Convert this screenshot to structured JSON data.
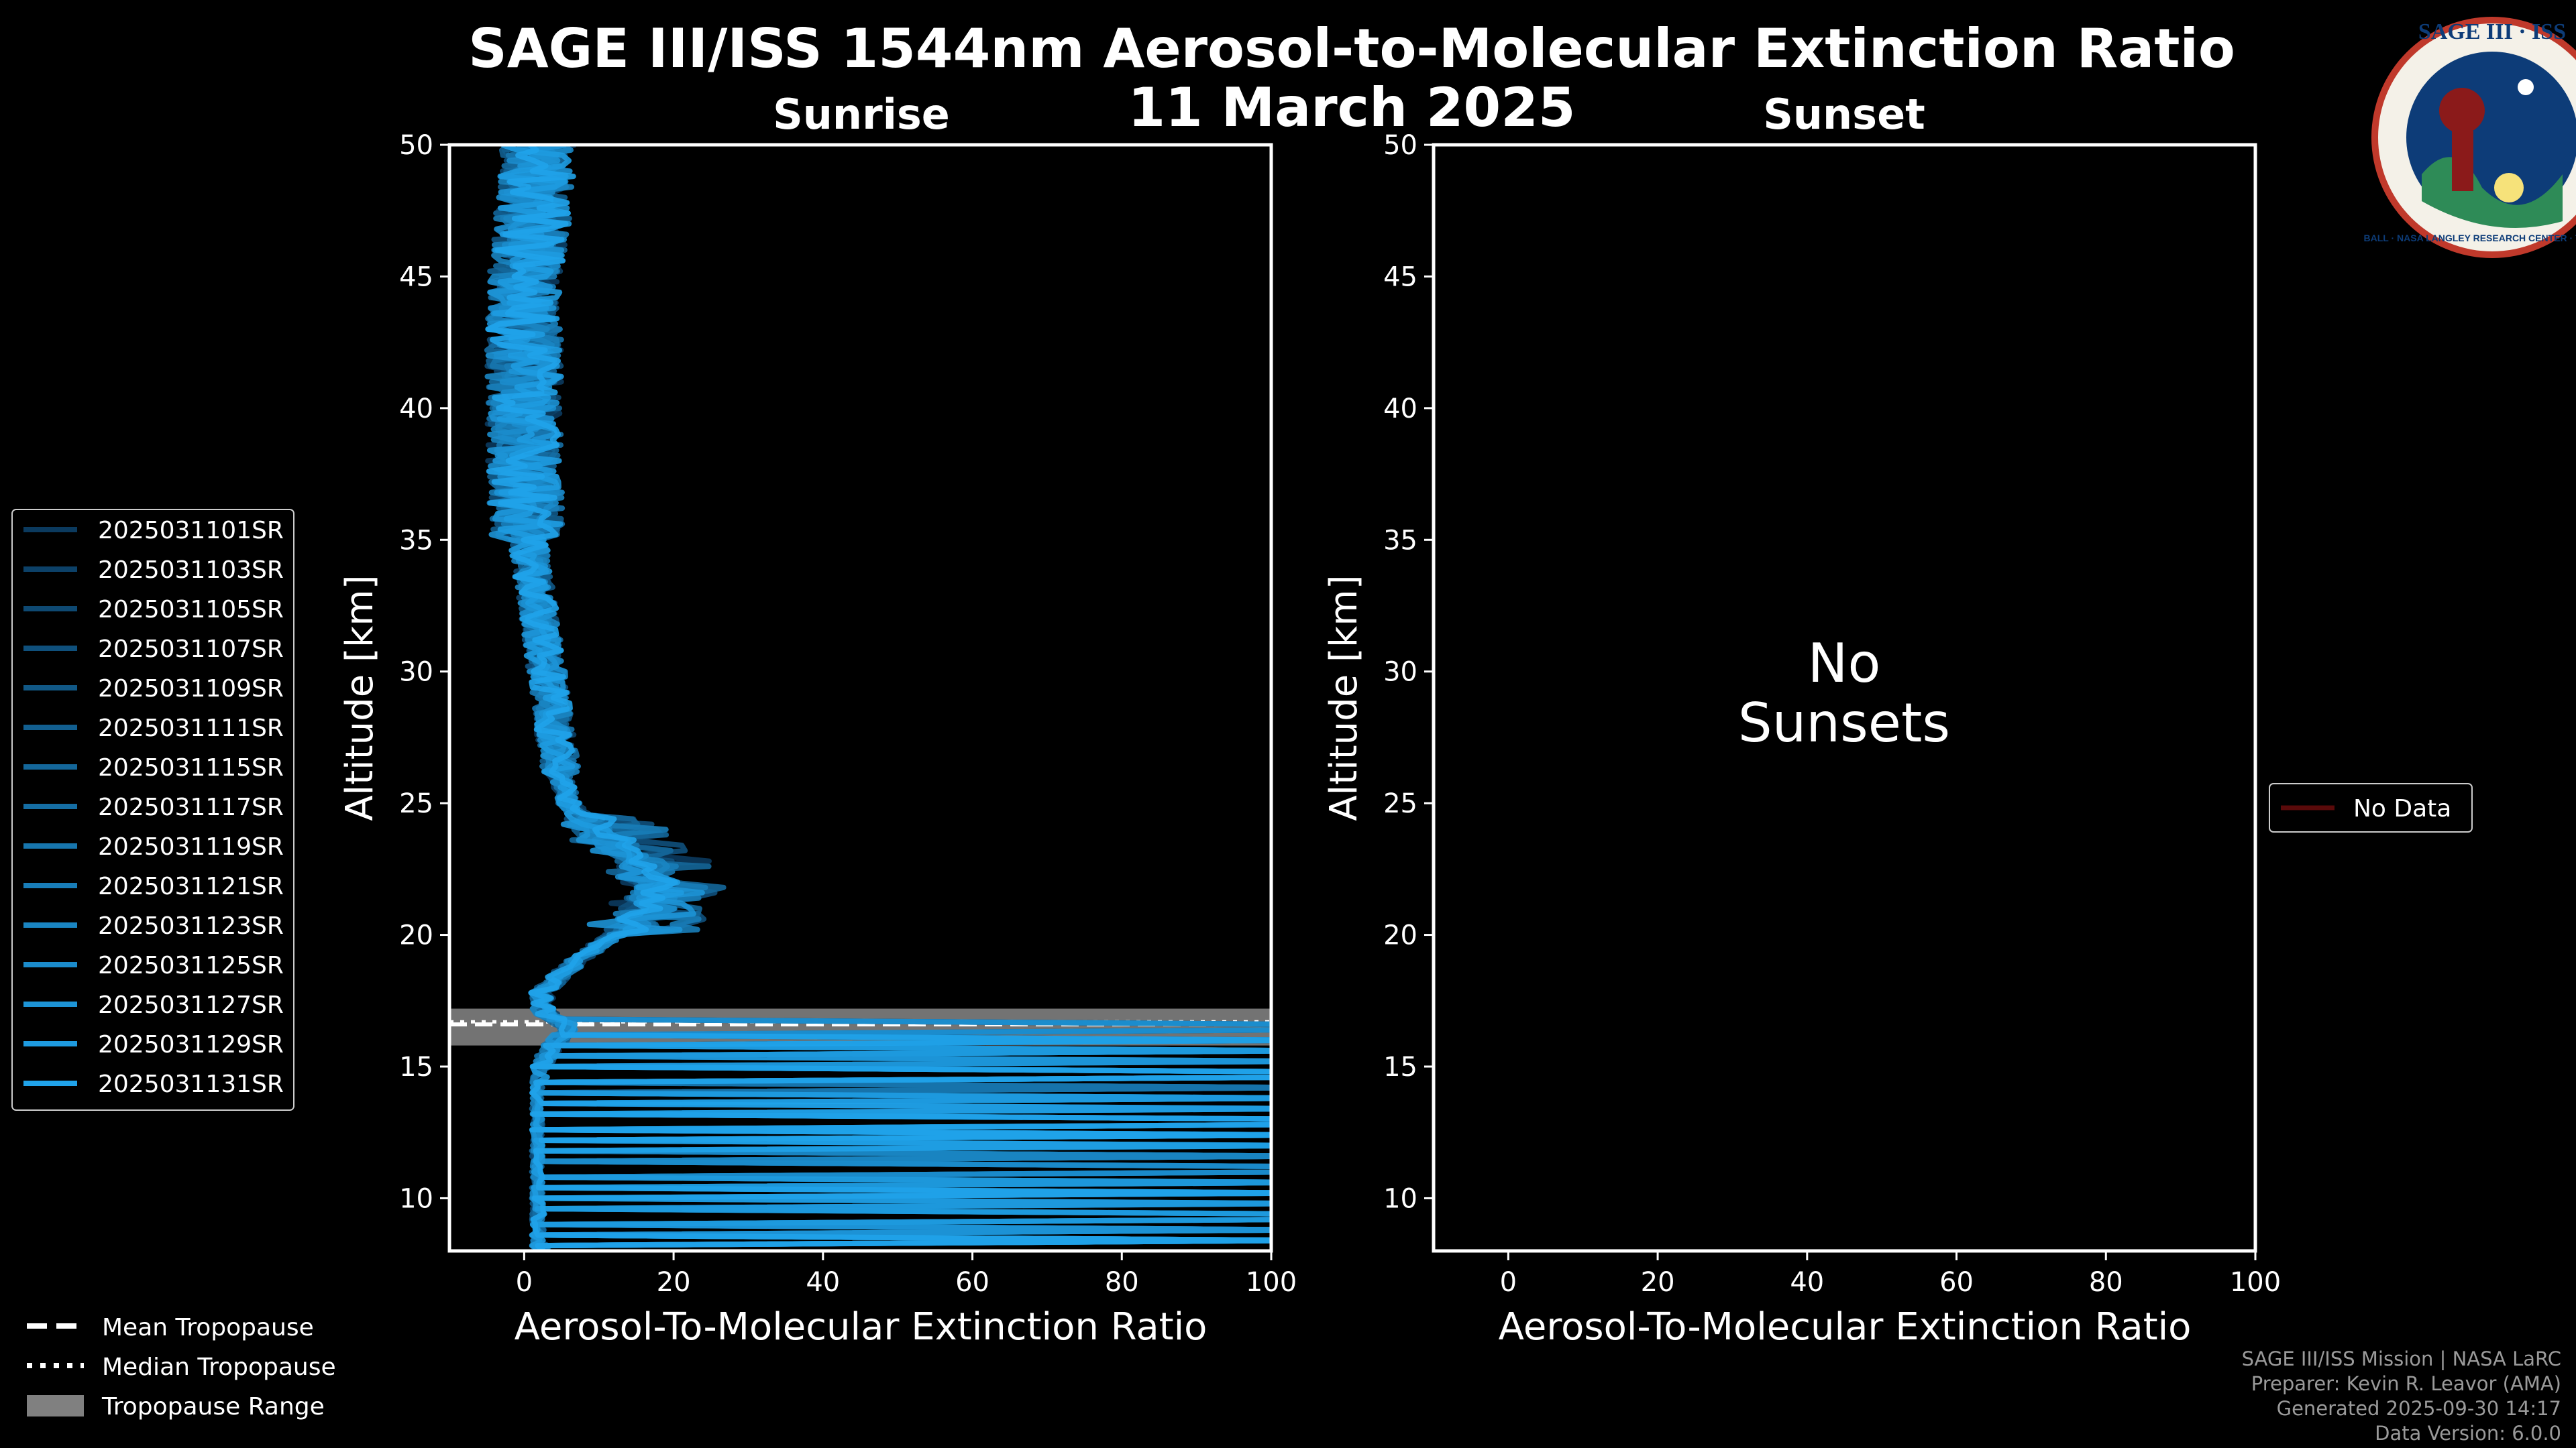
{
  "title": "SAGE III/ISS 1544nm Aerosol-to-Molecular Extinction Ratio",
  "date": "11 March 2025",
  "logo": {
    "text": "SAGE III · ISS",
    "ring_text": "BALL · NASA LANGLEY RESEARCH CENTER · TAS / ESA"
  },
  "colors": {
    "background": "#000000",
    "profile": "#1a8fd6",
    "tropopause_range": "#808080",
    "no_data": "#5a0a0a"
  },
  "chart_data": [
    {
      "type": "line",
      "title": "Sunrise",
      "xlabel": "Aerosol-To-Molecular Extinction Ratio",
      "ylabel": "Altitude [km]",
      "xlim": [
        -10,
        100
      ],
      "ylim": [
        8,
        50
      ],
      "xticks": [
        0,
        20,
        40,
        60,
        80,
        100
      ],
      "yticks": [
        10,
        15,
        20,
        25,
        30,
        35,
        40,
        45,
        50
      ],
      "tropopause": {
        "mean": 16.6,
        "median": 16.7,
        "range": [
          15.8,
          17.2
        ]
      },
      "series_names": [
        "2025031101SR",
        "2025031103SR",
        "2025031105SR",
        "2025031107SR",
        "2025031109SR",
        "2025031111SR",
        "2025031115SR",
        "2025031117SR",
        "2025031119SR",
        "2025031121SR",
        "2025031123SR",
        "2025031125SR",
        "2025031127SR",
        "2025031129SR",
        "2025031131SR"
      ],
      "series_colors": [
        "#0b3a5e",
        "#0c4168",
        "#0e4972",
        "#0f507c",
        "#115886",
        "#125f90",
        "#14679a",
        "#156ea4",
        "#1776ae",
        "#187db8",
        "#1a85c2",
        "#1b8ccc",
        "#1d94d6",
        "#1e9be0",
        "#20a3ea"
      ],
      "profile_anchors": {
        "alt": [
          8,
          10,
          12,
          14,
          15,
          15.8,
          16.5,
          17,
          17.5,
          18,
          19,
          20,
          21,
          22,
          23,
          24,
          25,
          26,
          28,
          30,
          32,
          35,
          38,
          41,
          44,
          47,
          50
        ],
        "ratio": [
          1,
          0,
          0,
          0,
          1,
          3,
          5,
          2,
          1,
          3,
          7,
          12,
          16,
          16,
          13,
          9,
          6,
          5,
          4,
          3,
          2,
          0.5,
          0,
          0,
          0,
          1,
          2
        ]
      },
      "legend_position": "center-left, outside"
    },
    {
      "type": "line",
      "title": "Sunset",
      "xlabel": "Aerosol-To-Molecular Extinction Ratio",
      "ylabel": "Altitude [km]",
      "xlim": [
        -10,
        100
      ],
      "ylim": [
        8,
        50
      ],
      "xticks": [
        0,
        20,
        40,
        60,
        80,
        100
      ],
      "yticks": [
        10,
        15,
        20,
        25,
        30,
        35,
        40,
        45,
        50
      ],
      "annotation": [
        "No",
        "Sunsets"
      ],
      "series_names": [
        "No Data"
      ],
      "legend_position": "center-right, outside"
    }
  ],
  "tropopause_legend": [
    "Mean Tropopause",
    "Median Tropopause",
    "Tropopause Range"
  ],
  "credits": [
    "SAGE III/ISS Mission | NASA LaRC",
    "Preparer: Kevin R. Leavor (AMA)",
    "Generated 2025-09-30 14:17",
    "Data Version: 6.0.0"
  ]
}
